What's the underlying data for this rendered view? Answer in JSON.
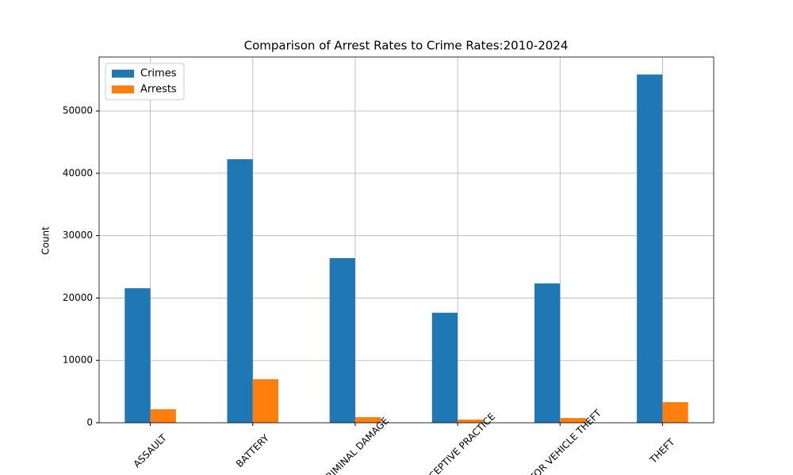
{
  "chart_data": {
    "type": "bar",
    "title": "Comparison of Arrest Rates to Crime Rates:2010-2024",
    "y_label": "Count",
    "categories": [
      "ASSAULT",
      "BATTERY",
      "CRIMINAL DAMAGE",
      "DECEPTIVE PRACTICE",
      "MOTOR VEHICLE THEFT",
      "THEFT"
    ],
    "series": [
      {
        "name": "Crimes",
        "color": "#1f77b4",
        "values": [
          21570,
          42260,
          26400,
          17640,
          22340,
          55840
        ]
      },
      {
        "name": "Arrests",
        "color": "#ff7f0e",
        "values": [
          2160,
          6980,
          890,
          510,
          760,
          3300
        ]
      }
    ],
    "ylim": [
      0,
      58650
    ],
    "yticks": [
      0,
      10000,
      20000,
      30000,
      40000,
      50000
    ],
    "grid": true,
    "legend": "upper left"
  }
}
